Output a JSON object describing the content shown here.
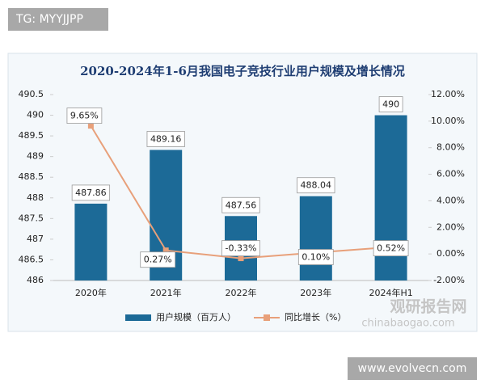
{
  "chart_data": {
    "type": "bar",
    "title": "2020-2024年1-6月我国电子竞技行业用户规模及增长情况",
    "categories": [
      "2020年",
      "2021年",
      "2022年",
      "2023年",
      "2024年H1"
    ],
    "series": [
      {
        "name": "用户规模（百万人）",
        "type": "bar",
        "color": "#1c6a97",
        "values": [
          487.86,
          489.16,
          487.56,
          488.04,
          490
        ]
      },
      {
        "name": "同比增长（%）",
        "type": "line",
        "axis": "y2",
        "color": "#e8a07a",
        "values": [
          9.65,
          0.27,
          -0.33,
          0.1,
          0.52
        ],
        "value_labels": [
          "9.65%",
          "0.27%",
          "-0.33%",
          "0.10%",
          "0.52%"
        ]
      }
    ],
    "ylim": [
      486,
      490.5
    ],
    "yticks": [
      486,
      486.5,
      487,
      487.5,
      488,
      488.5,
      489,
      489.5,
      490,
      490.5
    ],
    "y2lim": [
      -2,
      12
    ],
    "y2ticks": [
      {
        "value": -2,
        "label": "-2.00%"
      },
      {
        "value": 0,
        "label": "0.00%"
      },
      {
        "value": 2,
        "label": "2.00%"
      },
      {
        "value": 4,
        "label": "4.00%"
      },
      {
        "value": 6,
        "label": "6.00%"
      },
      {
        "value": 8,
        "label": "8.00%"
      },
      {
        "value": 10,
        "label": "10.00%"
      },
      {
        "value": 12,
        "label": "12.00%"
      }
    ],
    "grid": false,
    "legend": "bottom",
    "annotations": [
      "TG: MYYJJPP",
      "观研报告网",
      "chinabaogao.com",
      "www.evolvecn.com"
    ]
  }
}
